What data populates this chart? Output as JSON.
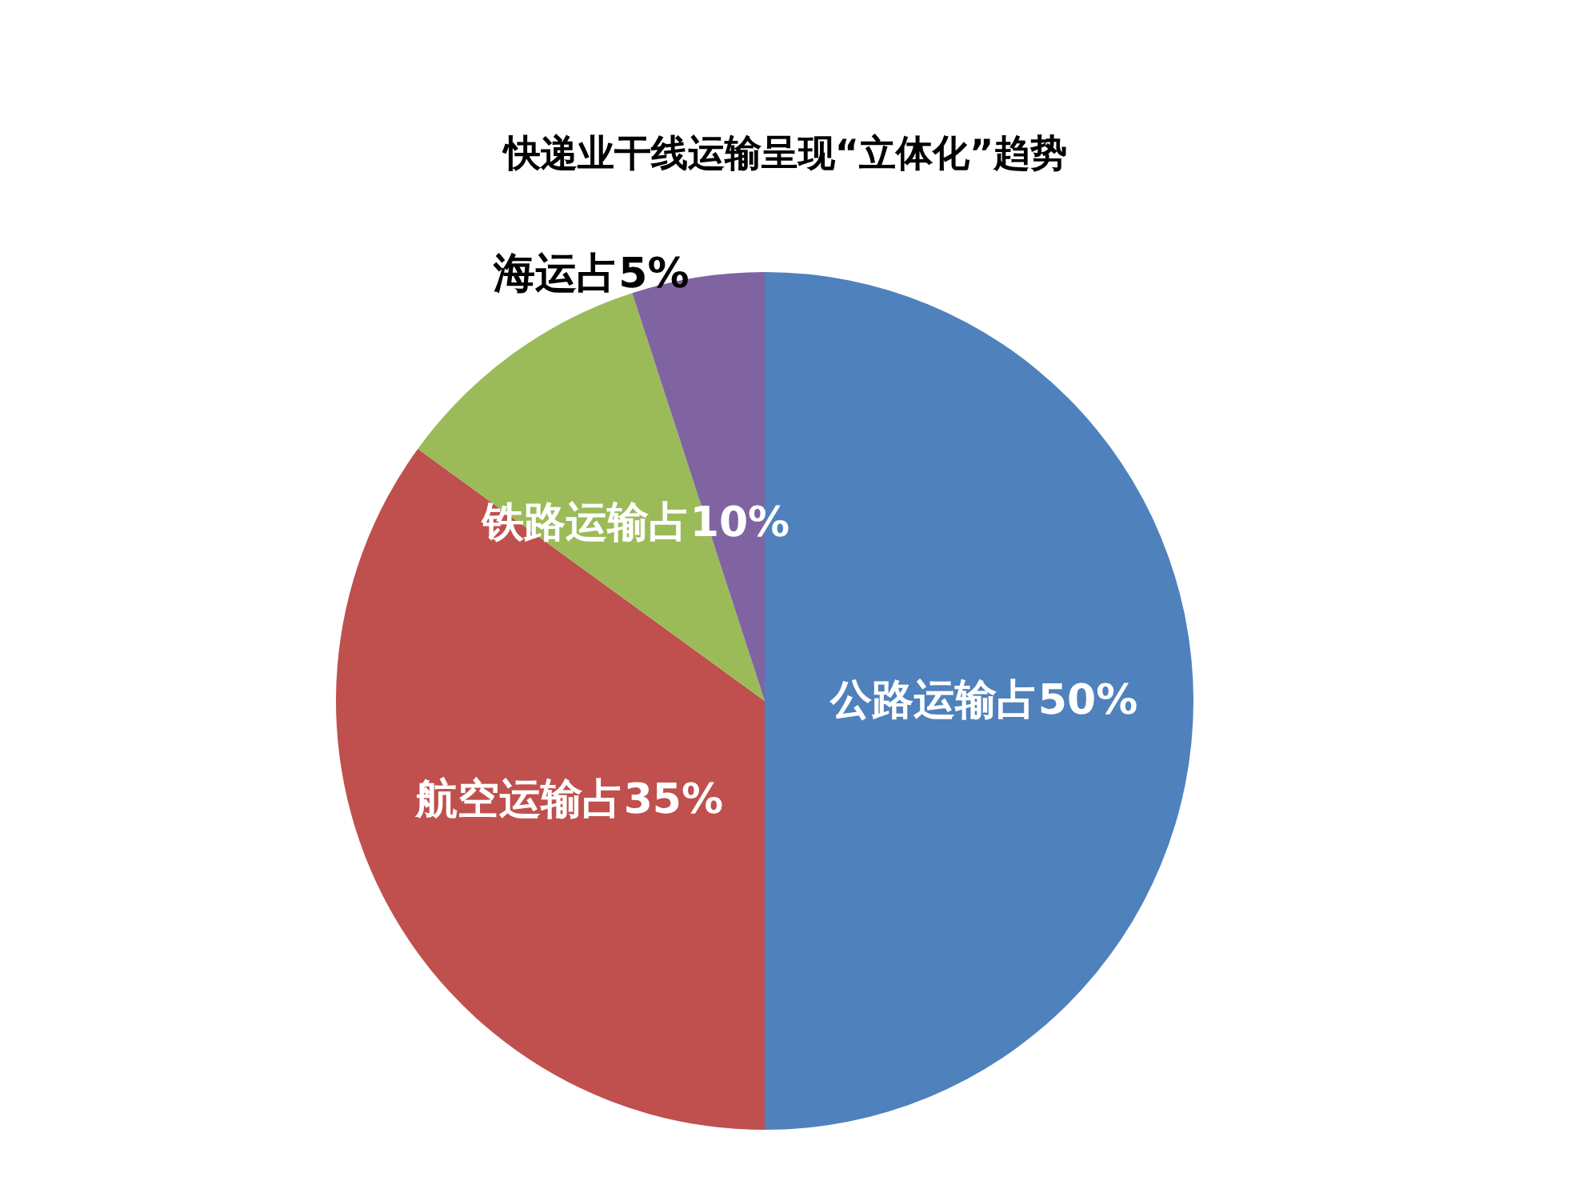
{
  "chart_data": {
    "type": "pie",
    "title": "快递业干线运输呈现“立体化”趋势",
    "categories": [
      "公路运输占50%",
      "航空运输占35%",
      "铁路运输占10%",
      "海运占5%"
    ],
    "values": [
      50,
      35,
      10,
      5
    ],
    "colors": [
      "#4f81bd",
      "#c0504d",
      "#9bbb59",
      "#8064a2"
    ],
    "legend": false
  }
}
